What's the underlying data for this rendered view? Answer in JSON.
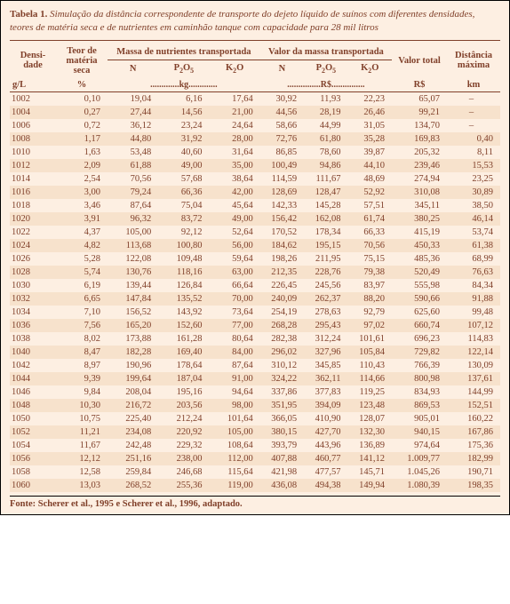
{
  "colors": {
    "bg": "#fdefe2",
    "stripe": "#f7e2cc",
    "ink": "#80402a"
  },
  "title_prefix": "Tabela 1.",
  "title_rest": " Simulação da distância correspondente de transporte do dejeto líquido de suínos com diferentes densidades, teores de matéria seca e de nutrientes em caminhão tanque com capacidade para 28 mil litros",
  "headers": {
    "densidade": "Densi-\ndade",
    "teor": "Teor de matéria seca",
    "massa_group": "Massa de nutrientes transportada",
    "valor_group": "Valor da massa transportada",
    "valor_total": "Valor total",
    "dist_max": "Distância máxima",
    "N": "N",
    "P": "P",
    "K": "K",
    "sub2": "2",
    "subO": "O",
    "sub5": "5"
  },
  "units": {
    "gL": "g/L",
    "pct": "%",
    "kg": "kg",
    "rs": "R$",
    "km": "km"
  },
  "rows": [
    [
      "1002",
      "0,10",
      "19,04",
      "6,16",
      "17,64",
      "30,92",
      "11,93",
      "22,23",
      "65,07",
      "–"
    ],
    [
      "1004",
      "0,27",
      "27,44",
      "14,56",
      "21,00",
      "44,56",
      "28,19",
      "26,46",
      "99,21",
      "–"
    ],
    [
      "1006",
      "0,72",
      "36,12",
      "23,24",
      "24,64",
      "58,66",
      "44,99",
      "31,05",
      "134,70",
      "–"
    ],
    [
      "1008",
      "1,17",
      "44,80",
      "31,92",
      "28,00",
      "72,76",
      "61,80",
      "35,28",
      "169,83",
      "0,40"
    ],
    [
      "1010",
      "1,63",
      "53,48",
      "40,60",
      "31,64",
      "86,85",
      "78,60",
      "39,87",
      "205,32",
      "8,11"
    ],
    [
      "1012",
      "2,09",
      "61,88",
      "49,00",
      "35,00",
      "100,49",
      "94,86",
      "44,10",
      "239,46",
      "15,53"
    ],
    [
      "1014",
      "2,54",
      "70,56",
      "57,68",
      "38,64",
      "114,59",
      "111,67",
      "48,69",
      "274,94",
      "23,25"
    ],
    [
      "1016",
      "3,00",
      "79,24",
      "66,36",
      "42,00",
      "128,69",
      "128,47",
      "52,92",
      "310,08",
      "30,89"
    ],
    [
      "1018",
      "3,46",
      "87,64",
      "75,04",
      "45,64",
      "142,33",
      "145,28",
      "57,51",
      "345,11",
      "38,50"
    ],
    [
      "1020",
      "3,91",
      "96,32",
      "83,72",
      "49,00",
      "156,42",
      "162,08",
      "61,74",
      "380,25",
      "46,14"
    ],
    [
      "1022",
      "4,37",
      "105,00",
      "92,12",
      "52,64",
      "170,52",
      "178,34",
      "66,33",
      "415,19",
      "53,74"
    ],
    [
      "1024",
      "4,82",
      "113,68",
      "100,80",
      "56,00",
      "184,62",
      "195,15",
      "70,56",
      "450,33",
      "61,38"
    ],
    [
      "1026",
      "5,28",
      "122,08",
      "109,48",
      "59,64",
      "198,26",
      "211,95",
      "75,15",
      "485,36",
      "68,99"
    ],
    [
      "1028",
      "5,74",
      "130,76",
      "118,16",
      "63,00",
      "212,35",
      "228,76",
      "79,38",
      "520,49",
      "76,63"
    ],
    [
      "1030",
      "6,19",
      "139,44",
      "126,84",
      "66,64",
      "226,45",
      "245,56",
      "83,97",
      "555,98",
      "84,34"
    ],
    [
      "1032",
      "6,65",
      "147,84",
      "135,52",
      "70,00",
      "240,09",
      "262,37",
      "88,20",
      "590,66",
      "91,88"
    ],
    [
      "1034",
      "7,10",
      "156,52",
      "143,92",
      "73,64",
      "254,19",
      "278,63",
      "92,79",
      "625,60",
      "99,48"
    ],
    [
      "1036",
      "7,56",
      "165,20",
      "152,60",
      "77,00",
      "268,28",
      "295,43",
      "97,02",
      "660,74",
      "107,12"
    ],
    [
      "1038",
      "8,02",
      "173,88",
      "161,28",
      "80,64",
      "282,38",
      "312,24",
      "101,61",
      "696,23",
      "114,83"
    ],
    [
      "1040",
      "8,47",
      "182,28",
      "169,40",
      "84,00",
      "296,02",
      "327,96",
      "105,84",
      "729,82",
      "122,14"
    ],
    [
      "1042",
      "8,97",
      "190,96",
      "178,64",
      "87,64",
      "310,12",
      "345,85",
      "110,43",
      "766,39",
      "130,09"
    ],
    [
      "1044",
      "9,39",
      "199,64",
      "187,04",
      "91,00",
      "324,22",
      "362,11",
      "114,66",
      "800,98",
      "137,61"
    ],
    [
      "1046",
      "9,84",
      "208,04",
      "195,16",
      "94,64",
      "337,86",
      "377,83",
      "119,25",
      "834,93",
      "144,99"
    ],
    [
      "1048",
      "10,30",
      "216,72",
      "203,56",
      "98,00",
      "351,95",
      "394,09",
      "123,48",
      "869,53",
      "152,51"
    ],
    [
      "1050",
      "10,75",
      "225,40",
      "212,24",
      "101,64",
      "366,05",
      "410,90",
      "128,07",
      "905,01",
      "160,22"
    ],
    [
      "1052",
      "11,21",
      "234,08",
      "220,92",
      "105,00",
      "380,15",
      "427,70",
      "132,30",
      "940,15",
      "167,86"
    ],
    [
      "1054",
      "11,67",
      "242,48",
      "229,32",
      "108,64",
      "393,79",
      "443,96",
      "136,89",
      "974,64",
      "175,36"
    ],
    [
      "1056",
      "12,12",
      "251,16",
      "238,00",
      "112,00",
      "407,88",
      "460,77",
      "141,12",
      "1.009,77",
      "182,99"
    ],
    [
      "1058",
      "12,58",
      "259,84",
      "246,68",
      "115,64",
      "421,98",
      "477,57",
      "145,71",
      "1.045,26",
      "190,71"
    ],
    [
      "1060",
      "13,03",
      "268,52",
      "255,36",
      "119,00",
      "436,08",
      "494,38",
      "149,94",
      "1.080,39",
      "198,35"
    ]
  ],
  "source": "Fonte: Scherer et al., 1995 e Scherer et al., 1996, adaptado."
}
